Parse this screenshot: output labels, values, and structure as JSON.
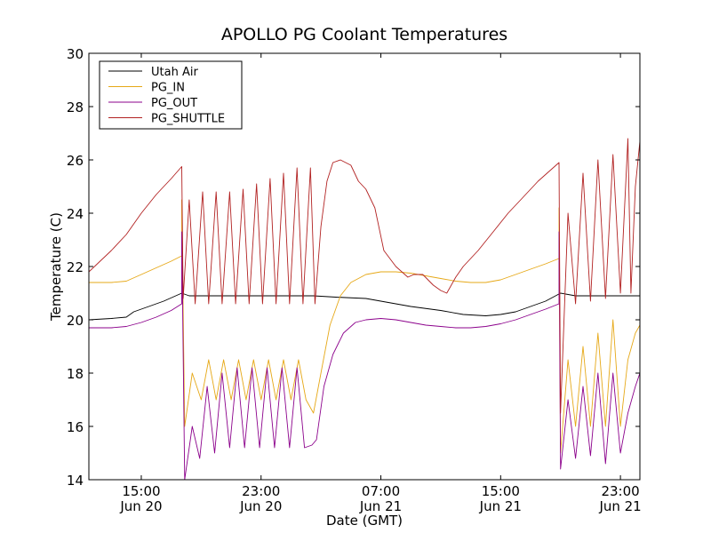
{
  "chart_data": {
    "type": "line",
    "title": "APOLLO PG Coolant Temperatures",
    "xlabel": "Date (GMT)",
    "ylabel": "Temperature (C)",
    "x_unit": "hours since Jun 20 00:00 GMT",
    "xlim": [
      11.5,
      48.3
    ],
    "ylim": [
      14,
      30
    ],
    "yticks": [
      14,
      16,
      18,
      20,
      22,
      24,
      26,
      28,
      30
    ],
    "xticks": [
      {
        "value": 15,
        "time": "15:00",
        "date": "Jun 20"
      },
      {
        "value": 23,
        "time": "23:00",
        "date": "Jun 20"
      },
      {
        "value": 31,
        "time": "07:00",
        "date": "Jun 21"
      },
      {
        "value": 39,
        "time": "15:00",
        "date": "Jun 21"
      },
      {
        "value": 47,
        "time": "23:00",
        "date": "Jun 21"
      }
    ],
    "grid": false,
    "legend_position": "top-left",
    "series": [
      {
        "name": "Utah Air",
        "color": "#000000",
        "points": [
          [
            11.5,
            20.0
          ],
          [
            13.0,
            20.05
          ],
          [
            14.0,
            20.1
          ],
          [
            14.5,
            20.3
          ],
          [
            15.5,
            20.5
          ],
          [
            16.5,
            20.7
          ],
          [
            17.7,
            21.0
          ],
          [
            18.2,
            20.9
          ],
          [
            19.0,
            20.9
          ],
          [
            20.0,
            20.9
          ],
          [
            21.0,
            20.9
          ],
          [
            22.0,
            20.9
          ],
          [
            23.0,
            20.9
          ],
          [
            24.0,
            20.9
          ],
          [
            25.0,
            20.9
          ],
          [
            26.0,
            20.9
          ],
          [
            26.5,
            20.9
          ],
          [
            28.0,
            20.85
          ],
          [
            30.0,
            20.8
          ],
          [
            31.0,
            20.7
          ],
          [
            33.0,
            20.5
          ],
          [
            35.0,
            20.35
          ],
          [
            36.5,
            20.2
          ],
          [
            38.0,
            20.15
          ],
          [
            39.0,
            20.2
          ],
          [
            40.0,
            20.3
          ],
          [
            41.0,
            20.5
          ],
          [
            42.0,
            20.7
          ],
          [
            43.0,
            21.0
          ],
          [
            44.0,
            20.9
          ],
          [
            45.0,
            20.9
          ],
          [
            46.0,
            20.9
          ],
          [
            47.0,
            20.9
          ],
          [
            48.3,
            20.9
          ]
        ]
      },
      {
        "name": "PG_IN",
        "color": "#e6a817",
        "points": [
          [
            11.5,
            21.4
          ],
          [
            13.0,
            21.4
          ],
          [
            14.0,
            21.45
          ],
          [
            15.0,
            21.7
          ],
          [
            16.0,
            21.95
          ],
          [
            17.0,
            22.2
          ],
          [
            17.7,
            22.4
          ],
          [
            17.7,
            24.5
          ],
          [
            17.9,
            16.0
          ],
          [
            18.4,
            18.0
          ],
          [
            19.0,
            17.0
          ],
          [
            19.5,
            18.5
          ],
          [
            20.0,
            17.0
          ],
          [
            20.5,
            18.5
          ],
          [
            21.0,
            17.0
          ],
          [
            21.5,
            18.5
          ],
          [
            22.0,
            17.0
          ],
          [
            22.5,
            18.5
          ],
          [
            23.0,
            17.0
          ],
          [
            23.5,
            18.5
          ],
          [
            24.0,
            17.0
          ],
          [
            24.5,
            18.5
          ],
          [
            25.0,
            17.0
          ],
          [
            25.5,
            18.5
          ],
          [
            26.0,
            17.0
          ],
          [
            26.5,
            16.5
          ],
          [
            27.0,
            18.0
          ],
          [
            27.6,
            19.8
          ],
          [
            28.3,
            20.9
          ],
          [
            29.0,
            21.4
          ],
          [
            30.0,
            21.7
          ],
          [
            31.0,
            21.8
          ],
          [
            32.0,
            21.8
          ],
          [
            33.0,
            21.75
          ],
          [
            34.0,
            21.65
          ],
          [
            35.0,
            21.55
          ],
          [
            36.0,
            21.45
          ],
          [
            37.0,
            21.4
          ],
          [
            38.0,
            21.4
          ],
          [
            39.0,
            21.5
          ],
          [
            40.0,
            21.7
          ],
          [
            41.0,
            21.9
          ],
          [
            42.0,
            22.1
          ],
          [
            42.9,
            22.3
          ],
          [
            42.9,
            24.2
          ],
          [
            43.0,
            15.0
          ],
          [
            43.5,
            18.5
          ],
          [
            44.0,
            16.0
          ],
          [
            44.5,
            19.0
          ],
          [
            45.0,
            16.0
          ],
          [
            45.5,
            19.5
          ],
          [
            46.0,
            16.0
          ],
          [
            46.5,
            20.0
          ],
          [
            47.0,
            16.0
          ],
          [
            47.5,
            18.5
          ],
          [
            48.0,
            19.5
          ],
          [
            48.3,
            19.8
          ]
        ]
      },
      {
        "name": "PG_OUT",
        "color": "#8b008b",
        "points": [
          [
            11.5,
            19.7
          ],
          [
            13.0,
            19.7
          ],
          [
            14.0,
            19.75
          ],
          [
            15.0,
            19.9
          ],
          [
            16.0,
            20.1
          ],
          [
            17.0,
            20.35
          ],
          [
            17.7,
            20.6
          ],
          [
            17.7,
            23.3
          ],
          [
            17.9,
            14.0
          ],
          [
            18.4,
            16.0
          ],
          [
            18.9,
            14.8
          ],
          [
            19.4,
            17.5
          ],
          [
            19.9,
            15.0
          ],
          [
            20.4,
            18.0
          ],
          [
            20.9,
            15.2
          ],
          [
            21.4,
            18.2
          ],
          [
            21.9,
            15.2
          ],
          [
            22.4,
            18.2
          ],
          [
            22.9,
            15.2
          ],
          [
            23.4,
            18.2
          ],
          [
            23.9,
            15.2
          ],
          [
            24.4,
            18.2
          ],
          [
            24.9,
            15.2
          ],
          [
            25.4,
            18.2
          ],
          [
            25.9,
            15.2
          ],
          [
            26.4,
            15.3
          ],
          [
            26.7,
            15.5
          ],
          [
            27.2,
            17.5
          ],
          [
            27.8,
            18.7
          ],
          [
            28.5,
            19.5
          ],
          [
            29.3,
            19.9
          ],
          [
            30.0,
            20.0
          ],
          [
            31.0,
            20.05
          ],
          [
            32.0,
            20.0
          ],
          [
            33.0,
            19.9
          ],
          [
            34.0,
            19.8
          ],
          [
            35.0,
            19.75
          ],
          [
            36.0,
            19.7
          ],
          [
            37.0,
            19.7
          ],
          [
            38.0,
            19.75
          ],
          [
            39.0,
            19.85
          ],
          [
            40.0,
            20.0
          ],
          [
            41.0,
            20.2
          ],
          [
            42.0,
            20.4
          ],
          [
            42.9,
            20.6
          ],
          [
            42.9,
            23.3
          ],
          [
            43.0,
            14.4
          ],
          [
            43.5,
            17.0
          ],
          [
            44.0,
            14.8
          ],
          [
            44.5,
            17.5
          ],
          [
            45.0,
            14.9
          ],
          [
            45.5,
            18.0
          ],
          [
            46.0,
            14.6
          ],
          [
            46.5,
            18.0
          ],
          [
            47.0,
            15.0
          ],
          [
            47.5,
            16.5
          ],
          [
            48.0,
            17.5
          ],
          [
            48.3,
            18.0
          ]
        ]
      },
      {
        "name": "PG_SHUTTLE",
        "color": "#b22222",
        "points": [
          [
            11.5,
            21.8
          ],
          [
            13.0,
            22.6
          ],
          [
            14.0,
            23.2
          ],
          [
            15.0,
            24.0
          ],
          [
            16.0,
            24.7
          ],
          [
            17.0,
            25.3
          ],
          [
            17.7,
            25.75
          ],
          [
            17.8,
            20.8
          ],
          [
            18.2,
            24.5
          ],
          [
            18.6,
            20.6
          ],
          [
            19.1,
            24.8
          ],
          [
            19.5,
            20.6
          ],
          [
            20.0,
            24.8
          ],
          [
            20.4,
            20.6
          ],
          [
            20.9,
            24.8
          ],
          [
            21.3,
            20.6
          ],
          [
            21.8,
            24.9
          ],
          [
            22.2,
            20.6
          ],
          [
            22.7,
            25.1
          ],
          [
            23.1,
            20.6
          ],
          [
            23.6,
            25.3
          ],
          [
            24.0,
            20.6
          ],
          [
            24.5,
            25.5
          ],
          [
            24.9,
            20.6
          ],
          [
            25.4,
            25.7
          ],
          [
            25.8,
            20.6
          ],
          [
            26.3,
            25.7
          ],
          [
            26.6,
            20.6
          ],
          [
            27.0,
            23.5
          ],
          [
            27.4,
            25.2
          ],
          [
            27.8,
            25.9
          ],
          [
            28.3,
            26.0
          ],
          [
            29.0,
            25.8
          ],
          [
            29.5,
            25.2
          ],
          [
            30.0,
            24.9
          ],
          [
            30.6,
            24.2
          ],
          [
            31.2,
            22.6
          ],
          [
            32.0,
            22.0
          ],
          [
            32.8,
            21.6
          ],
          [
            33.2,
            21.7
          ],
          [
            33.8,
            21.7
          ],
          [
            34.5,
            21.3
          ],
          [
            35.0,
            21.1
          ],
          [
            35.4,
            21.0
          ],
          [
            36.0,
            21.6
          ],
          [
            36.5,
            22.0
          ],
          [
            37.5,
            22.6
          ],
          [
            38.5,
            23.3
          ],
          [
            39.5,
            24.0
          ],
          [
            40.5,
            24.6
          ],
          [
            41.5,
            25.2
          ],
          [
            42.9,
            25.9
          ],
          [
            43.0,
            16.5
          ],
          [
            43.5,
            24.0
          ],
          [
            44.0,
            20.6
          ],
          [
            44.5,
            25.5
          ],
          [
            45.0,
            20.7
          ],
          [
            45.5,
            26.0
          ],
          [
            46.0,
            20.8
          ],
          [
            46.5,
            26.2
          ],
          [
            47.0,
            21.0
          ],
          [
            47.5,
            26.8
          ],
          [
            47.7,
            21.0
          ],
          [
            48.0,
            25.0
          ],
          [
            48.3,
            26.7
          ]
        ]
      }
    ]
  }
}
